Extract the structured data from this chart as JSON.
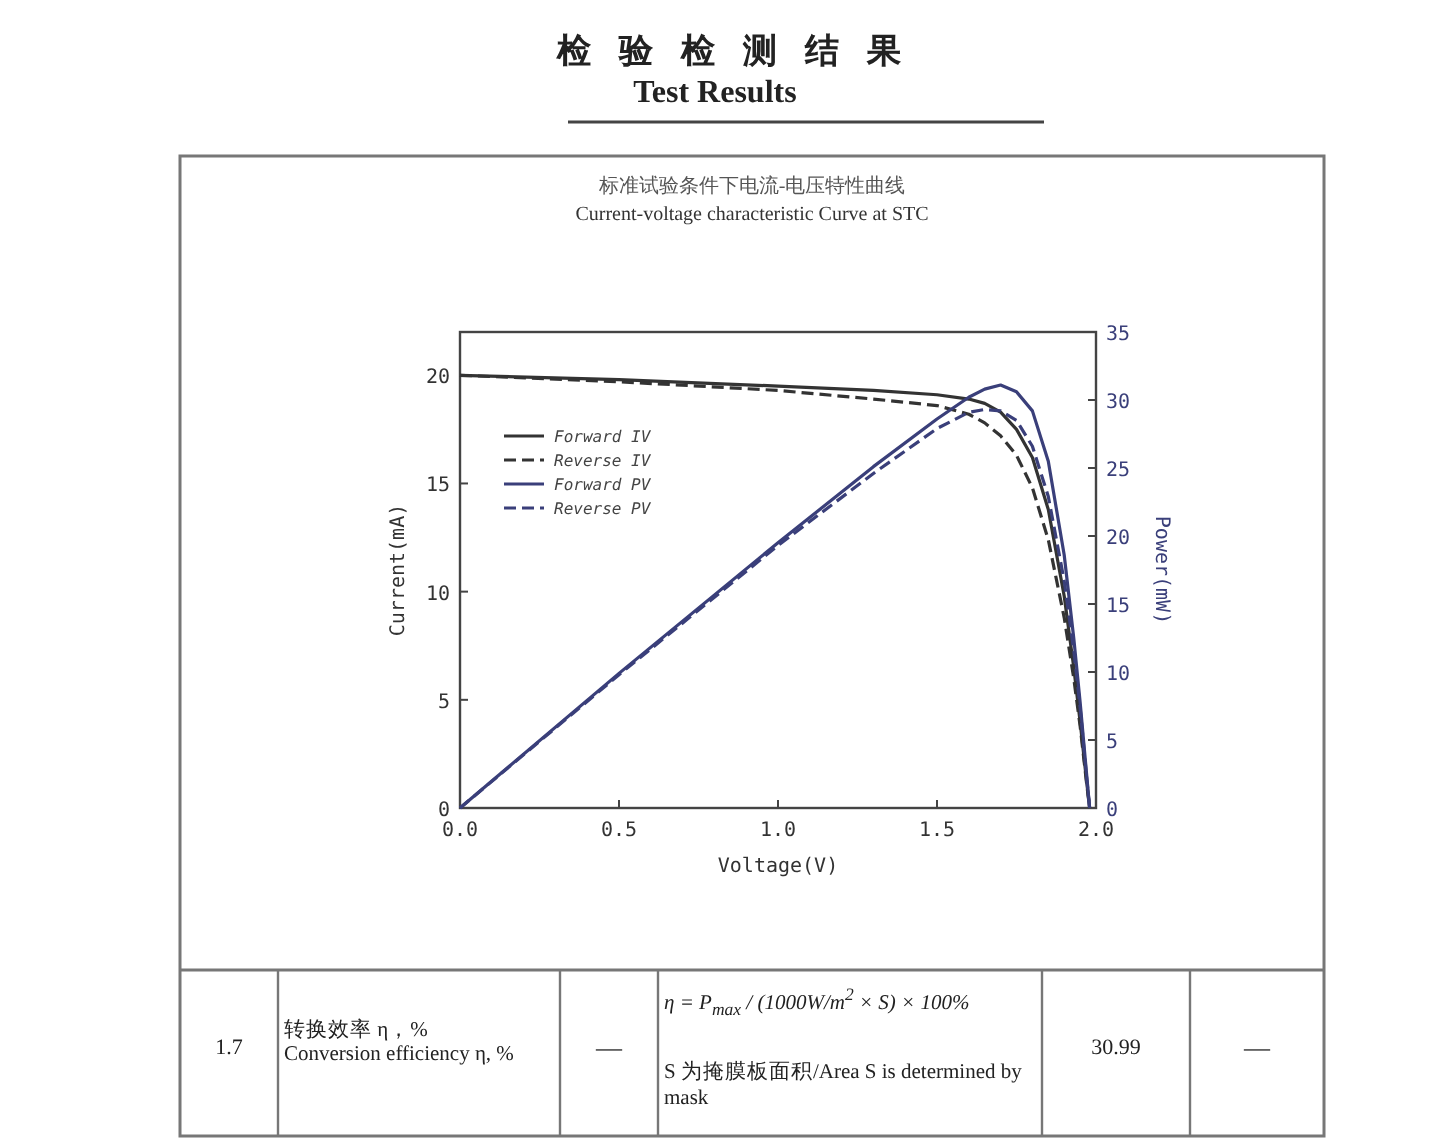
{
  "chart_data": {
    "type": "line",
    "title": "标准试验条件下电流-电压特性曲线",
    "subtitle": "Current-voltage characteristic Curve at STC",
    "xlabel": "Voltage(V)",
    "ylabel": "Current(mA)",
    "y2label": "Power(mW)",
    "annotations": [
      "检验检测结果",
      "Test Results",
      "1.7",
      "转换效率 η，%",
      "Conversion efficiency η, %",
      "—",
      "η = P$_{max}$ / (1000W/m$^{2}$ × S) × 100%",
      "S 为掩膜板面积/Area S is determined by mask",
      "30.99",
      "—"
    ],
    "x": [
      0,
      0.5,
      1.0,
      1.3,
      1.5,
      1.6,
      1.65,
      1.7,
      1.75,
      1.8,
      1.85,
      1.9,
      1.93,
      1.95,
      1.97,
      1.98
    ],
    "series": [
      {
        "name": "Forward IV",
        "color": "#333333",
        "line_style": "solid",
        "values": [
          20.0,
          19.8,
          19.5,
          19.3,
          19.1,
          18.9,
          18.7,
          18.3,
          17.5,
          16.2,
          13.8,
          9.8,
          6.5,
          4.0,
          1.3,
          0
        ]
      },
      {
        "name": "Reverse IV",
        "color": "#333333",
        "line_style": "dashed",
        "values": [
          20.0,
          19.7,
          19.3,
          18.9,
          18.6,
          18.2,
          17.8,
          17.2,
          16.3,
          14.8,
          12.4,
          8.8,
          6.0,
          3.8,
          1.2,
          0
        ]
      },
      {
        "name": "Forward PV",
        "color": "#3a3f7a",
        "line_style": "solid",
        "axis": "y2",
        "values": [
          0,
          9.9,
          19.5,
          25.1,
          28.6,
          30.2,
          30.8,
          31.1,
          30.6,
          29.2,
          25.5,
          18.6,
          12.5,
          7.8,
          2.6,
          0
        ]
      },
      {
        "name": "Reverse PV",
        "color": "#3a3f7a",
        "line_style": "dashed",
        "axis": "y2",
        "values": [
          0,
          9.8,
          19.3,
          24.6,
          27.9,
          29.1,
          29.3,
          29.2,
          28.5,
          26.6,
          22.9,
          16.7,
          11.6,
          7.4,
          2.4,
          0
        ]
      }
    ],
    "xlim": [
      0,
      2
    ],
    "xticks": [
      {
        "value": 0,
        "label": "0.0"
      },
      {
        "value": 0.5,
        "label": "0.5"
      },
      {
        "value": 1,
        "label": "1.0"
      },
      {
        "value": 1.5,
        "label": "1.5"
      },
      {
        "value": 2,
        "label": "2.0"
      }
    ],
    "ylim": [
      0,
      22
    ],
    "yticks": [
      0,
      5,
      10,
      15,
      20
    ],
    "y2lim": [
      0,
      35
    ],
    "y2ticks": [
      0,
      5,
      10,
      15,
      20,
      25,
      30,
      35
    ],
    "legend": "top left",
    "grid": false
  }
}
